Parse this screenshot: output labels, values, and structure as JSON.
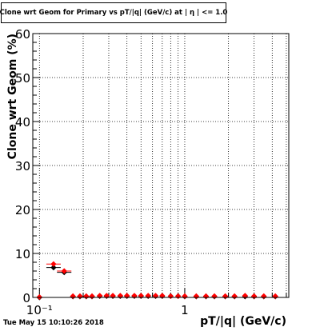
{
  "chart_data": {
    "type": "scatter",
    "title": "Clone wrt Geom for Primary vs pT/|q| (GeV/c) at | η | <= 1.0",
    "xlabel": "pT/|q| (GeV/c)",
    "ylabel": "Clone wrt Geom (%)",
    "xscale": "log",
    "xlim": [
      0.09,
      5.2
    ],
    "ylim": [
      0,
      60
    ],
    "xtick_labels": [
      {
        "value": 0.1,
        "label": "10⁻¹"
      },
      {
        "value": 1,
        "label": "1"
      }
    ],
    "ytick_labels": [
      "0",
      "10",
      "20",
      "30",
      "40",
      "50",
      "60"
    ],
    "grid": true,
    "series": [
      {
        "color": "#000000",
        "marker": "diamond",
        "points": [
          [
            0.1,
            0.0
          ],
          [
            0.125,
            6.8
          ],
          [
            0.148,
            5.7
          ],
          [
            0.17,
            0.2
          ],
          [
            0.19,
            0.2
          ],
          [
            0.21,
            0.2
          ],
          [
            0.23,
            0.2
          ],
          [
            0.26,
            0.3
          ],
          [
            0.29,
            0.3
          ],
          [
            0.32,
            0.3
          ],
          [
            0.36,
            0.3
          ],
          [
            0.4,
            0.3
          ],
          [
            0.45,
            0.3
          ],
          [
            0.5,
            0.3
          ],
          [
            0.56,
            0.3
          ],
          [
            0.63,
            0.3
          ],
          [
            0.7,
            0.3
          ],
          [
            0.8,
            0.3
          ],
          [
            0.9,
            0.3
          ],
          [
            1.0,
            0.2
          ],
          [
            1.2,
            0.2
          ],
          [
            1.4,
            0.2
          ],
          [
            1.6,
            0.2
          ],
          [
            1.9,
            0.2
          ],
          [
            2.2,
            0.2
          ],
          [
            2.6,
            0.2
          ],
          [
            3.0,
            0.2
          ],
          [
            3.5,
            0.2
          ],
          [
            4.2,
            0.2
          ]
        ]
      },
      {
        "color": "#ff0000",
        "marker": "diamond",
        "points": [
          [
            0.1,
            0.1
          ],
          [
            0.125,
            7.6
          ],
          [
            0.148,
            6.0
          ],
          [
            0.17,
            0.3
          ],
          [
            0.19,
            0.3
          ],
          [
            0.21,
            0.3
          ],
          [
            0.23,
            0.3
          ],
          [
            0.26,
            0.4
          ],
          [
            0.29,
            0.4
          ],
          [
            0.32,
            0.4
          ],
          [
            0.36,
            0.4
          ],
          [
            0.4,
            0.4
          ],
          [
            0.45,
            0.4
          ],
          [
            0.5,
            0.4
          ],
          [
            0.56,
            0.4
          ],
          [
            0.63,
            0.4
          ],
          [
            0.7,
            0.4
          ],
          [
            0.8,
            0.3
          ],
          [
            0.9,
            0.3
          ],
          [
            1.0,
            0.3
          ],
          [
            1.2,
            0.3
          ],
          [
            1.4,
            0.3
          ],
          [
            1.6,
            0.3
          ],
          [
            1.9,
            0.3
          ],
          [
            2.2,
            0.3
          ],
          [
            2.6,
            0.4
          ],
          [
            3.0,
            0.3
          ],
          [
            3.5,
            0.3
          ],
          [
            4.2,
            0.3
          ]
        ]
      }
    ]
  },
  "footer": {
    "timestamp": "Tue May 15 10:10:26 2018"
  }
}
